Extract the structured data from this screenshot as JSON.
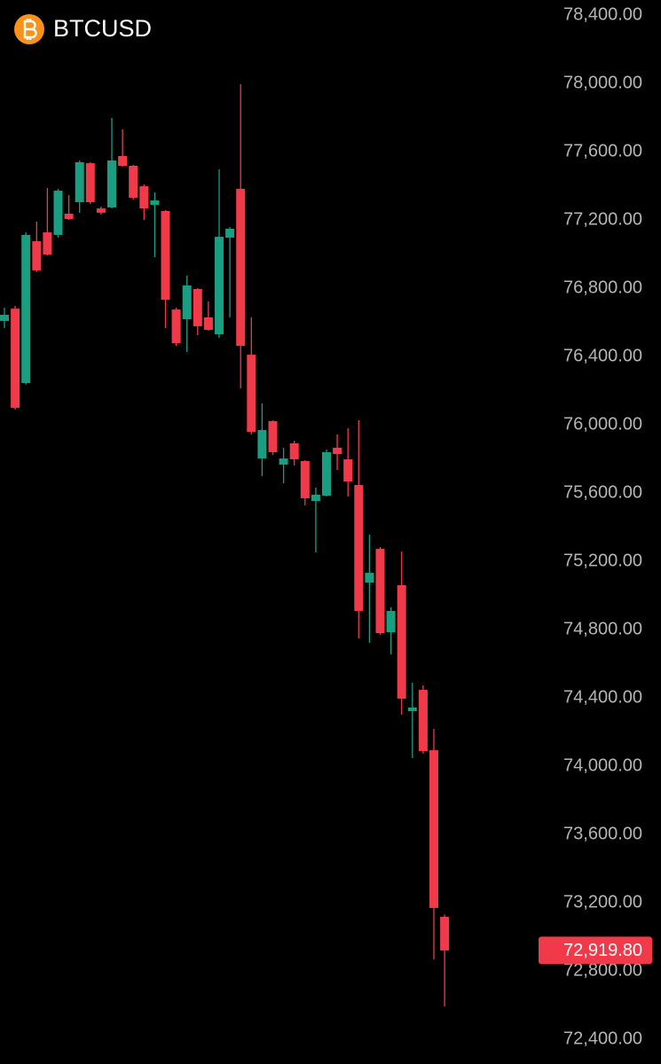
{
  "chart_data": {
    "type": "candlestick",
    "title": "BTCUSD",
    "open": [
      76608,
      76680,
      76244,
      77075,
      77127,
      77112,
      77236,
      77304,
      77532,
      77267,
      77273,
      77574,
      77517,
      77397,
      77288,
      77252,
      76675,
      76618,
      76795,
      76629,
      76530,
      77096,
      77382,
      76410,
      75802,
      76021,
      75766,
      75891,
      75787,
      75553,
      75584,
      75865,
      75797,
      75647,
      75075,
      75273,
      74784,
      75060,
      74322,
      74447,
      74093,
      73117
    ],
    "high": [
      76686,
      76696,
      77127,
      77190,
      77387,
      77382,
      77345,
      77548,
      77538,
      77278,
      77797,
      77730,
      77522,
      77408,
      77361,
      77257,
      76686,
      76873,
      76800,
      76722,
      77496,
      77158,
      77995,
      76629,
      76125,
      76026,
      75865,
      75906,
      75792,
      75631,
      75854,
      75943,
      75979,
      76026,
      75356,
      75283,
      74930,
      75257,
      74488,
      74473,
      74218,
      73130
    ],
    "low": [
      76566,
      76088,
      76235,
      76895,
      76990,
      77096,
      77200,
      77242,
      77293,
      77231,
      77267,
      77512,
      77319,
      77200,
      76982,
      76566,
      76462,
      76426,
      76525,
      76550,
      76509,
      76629,
      76213,
      75942,
      75699,
      75823,
      75657,
      75761,
      75527,
      75252,
      75580,
      75735,
      75579,
      74748,
      74722,
      74769,
      74654,
      74301,
      74047,
      74073,
      72867,
      72592
    ],
    "close": [
      76644,
      76099,
      77112,
      76904,
      76997,
      77371,
      77205,
      77538,
      77304,
      77242,
      77548,
      77517,
      77330,
      77267,
      77314,
      76732,
      76478,
      76816,
      76577,
      76556,
      77101,
      77148,
      76462,
      75958,
      75969,
      75839,
      75802,
      75797,
      75569,
      75590,
      75839,
      75828,
      75667,
      74909,
      75132,
      74779,
      74909,
      74395,
      74343,
      74088,
      73169,
      72919.8
    ],
    "up_color": "#1a9e82",
    "down_color": "#f03a4a",
    "ylim": [
      72254.5,
      78488.3
    ],
    "yticks": [
      {
        "value": 72400,
        "label": "72,400.00"
      },
      {
        "value": 72800,
        "label": "72,800.00"
      },
      {
        "value": 73200,
        "label": "73,200.00"
      },
      {
        "value": 73600,
        "label": "73,600.00"
      },
      {
        "value": 74000,
        "label": "74,000.00"
      },
      {
        "value": 74400,
        "label": "74,400.00"
      },
      {
        "value": 74800,
        "label": "74,800.00"
      },
      {
        "value": 75200,
        "label": "75,200.00"
      },
      {
        "value": 75600,
        "label": "75,600.00"
      },
      {
        "value": 76000,
        "label": "76,000.00"
      },
      {
        "value": 76400,
        "label": "76,400.00"
      },
      {
        "value": 76800,
        "label": "76,800.00"
      },
      {
        "value": 77200,
        "label": "77,200.00"
      },
      {
        "value": 77600,
        "label": "77,600.00"
      },
      {
        "value": 78000,
        "label": "78,000.00"
      },
      {
        "value": 78400,
        "label": "78,400.00"
      }
    ],
    "last_price": {
      "value": 72919.8,
      "label": "72,919.80"
    }
  }
}
